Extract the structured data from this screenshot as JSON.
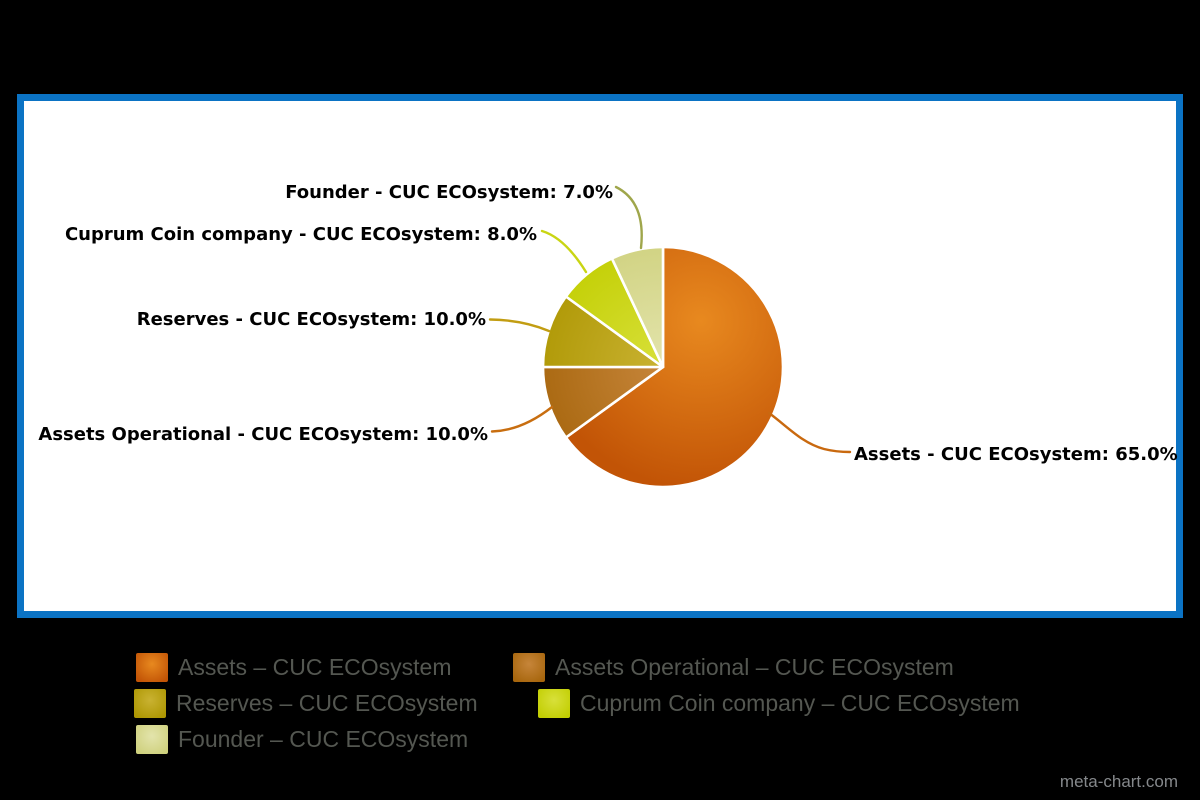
{
  "watermark": "meta-chart.com",
  "colors": {
    "background": "#000000",
    "plot_background": "#ffffff",
    "frame_border": "#0b73c4",
    "callout_text": "#000000",
    "legend_text": "#545751",
    "watermark_text": "#85888b"
  },
  "chart_data": {
    "type": "pie",
    "title": "",
    "unit": "%",
    "start_angle_deg": 0,
    "direction": "clockwise",
    "legend_position": "bottom",
    "slices": [
      {
        "name": "Assets - CUC ECOsystem",
        "value": 65.0,
        "color": "#D2690E",
        "color_center": "#E8891F",
        "color_edge": "#C25406",
        "leader_color": "#C9690F",
        "callout": "Assets - CUC ECOsystem: 65.0%"
      },
      {
        "name": "Assets Operational - CUC ECOsystem",
        "value": 10.0,
        "color": "#B5741F",
        "color_center": "#C6853A",
        "color_edge": "#A7660D",
        "leader_color": "#C86E10",
        "callout": "Assets Operational - CUC ECOsystem: 10.0%"
      },
      {
        "name": "Reserves - CUC ECOsystem",
        "value": 10.0,
        "color": "#B8A10E",
        "color_center": "#C9B232",
        "color_edge": "#AE9703",
        "leader_color": "#C29D12",
        "callout": "Reserves - CUC ECOsystem: 10.0%"
      },
      {
        "name": "Cuprum Coin company - CUC ECOsystem",
        "value": 8.0,
        "color": "#CCD40E",
        "color_center": "#D8E03A",
        "color_edge": "#C2CE02",
        "leader_color": "#C9D513",
        "callout": "Cuprum Coin company - CUC ECOsystem: 8.0%"
      },
      {
        "name": "Founder - CUC ECOsystem",
        "value": 7.0,
        "color": "#D9DA94",
        "color_center": "#E3E4AC",
        "color_edge": "#CFD17E",
        "leader_color": "#9FA64B",
        "callout": "Founder - CUC ECOsystem: 7.0%"
      }
    ],
    "legend": [
      {
        "label": "Assets – CUC ECOsystem"
      },
      {
        "label": "Assets Operational – CUC ECOsystem"
      },
      {
        "label": "Reserves – CUC ECOsystem"
      },
      {
        "label": "Cuprum Coin company – CUC ECOsystem"
      },
      {
        "label": "Founder – CUC ECOsystem"
      }
    ]
  }
}
